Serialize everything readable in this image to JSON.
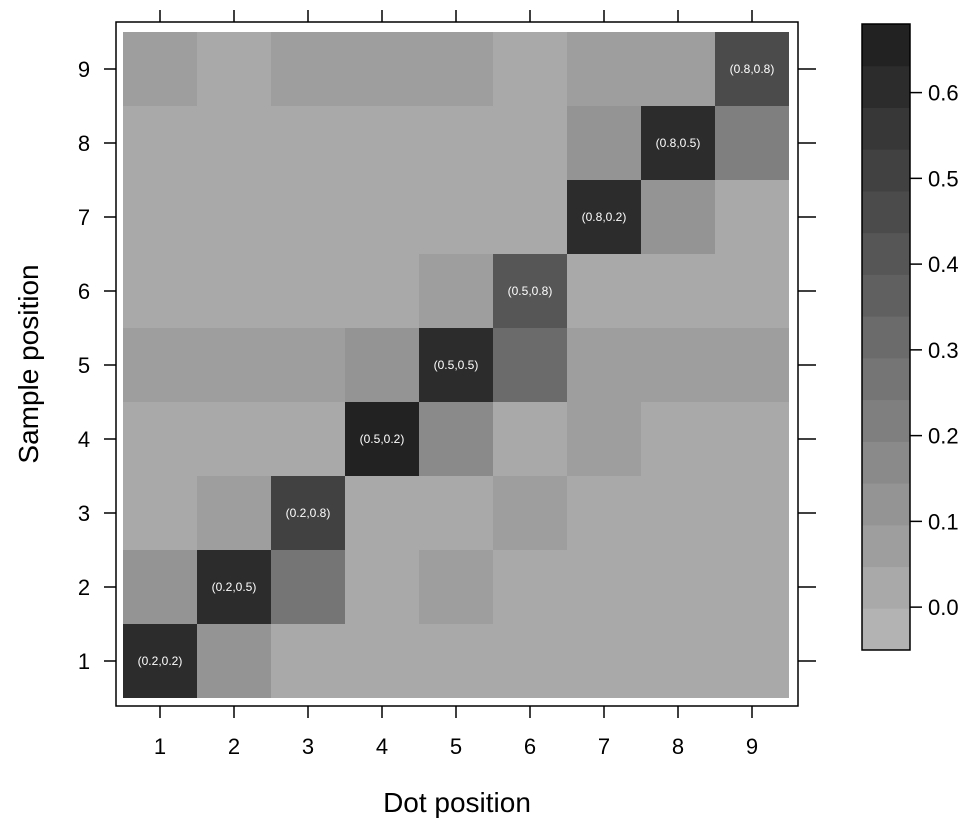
{
  "chart_data": {
    "type": "heatmap",
    "title": "",
    "xlabel": "Dot position",
    "ylabel": "Sample position",
    "x": [
      "1",
      "2",
      "3",
      "4",
      "5",
      "6",
      "7",
      "8",
      "9"
    ],
    "y": [
      "1",
      "2",
      "3",
      "4",
      "5",
      "6",
      "7",
      "8",
      "9"
    ],
    "z": [
      [
        0.62,
        0.11,
        0.03,
        0.03,
        0.03,
        0.03,
        0.03,
        0.03,
        0.03
      ],
      [
        0.11,
        0.62,
        0.28,
        0.03,
        0.06,
        0.03,
        0.03,
        0.03,
        0.03
      ],
      [
        0.03,
        0.07,
        0.5,
        0.03,
        0.03,
        0.07,
        0.03,
        0.03,
        0.03
      ],
      [
        0.03,
        0.03,
        0.03,
        0.68,
        0.17,
        0.03,
        0.05,
        0.03,
        0.03
      ],
      [
        0.06,
        0.06,
        0.06,
        0.13,
        0.62,
        0.3,
        0.06,
        0.06,
        0.06
      ],
      [
        0.03,
        0.03,
        0.03,
        0.03,
        0.06,
        0.42,
        0.03,
        0.03,
        0.03
      ],
      [
        0.03,
        0.03,
        0.03,
        0.03,
        0.03,
        0.03,
        0.6,
        0.11,
        0.03
      ],
      [
        0.03,
        0.03,
        0.03,
        0.03,
        0.03,
        0.03,
        0.11,
        0.62,
        0.2
      ],
      [
        0.05,
        0.01,
        0.05,
        0.05,
        0.05,
        0.01,
        0.05,
        0.08,
        0.45
      ]
    ],
    "annotations": [
      {
        "x": "1",
        "y": "1",
        "text": "(0.2,0.2)"
      },
      {
        "x": "2",
        "y": "2",
        "text": "(0.2,0.5)"
      },
      {
        "x": "3",
        "y": "3",
        "text": "(0.2,0.8)"
      },
      {
        "x": "4",
        "y": "4",
        "text": "(0.5,0.2)"
      },
      {
        "x": "5",
        "y": "5",
        "text": "(0.5,0.5)"
      },
      {
        "x": "6",
        "y": "6",
        "text": "(0.5,0.8)"
      },
      {
        "x": "7",
        "y": "7",
        "text": "(0.8,0.2)"
      },
      {
        "x": "8",
        "y": "8",
        "text": "(0.8,0.5)"
      },
      {
        "x": "9",
        "y": "9",
        "text": "(0.8,0.8)"
      }
    ],
    "colorbar": {
      "range": [
        -0.05,
        0.68
      ],
      "ticks": [
        0.0,
        0.1,
        0.2,
        0.3,
        0.4,
        0.5,
        0.6
      ],
      "tick_labels": [
        "0.0",
        "0.1",
        "0.2",
        "0.3",
        "0.4",
        "0.5",
        "0.6"
      ],
      "levels": 15,
      "color_low": "#b3b3b3",
      "color_high": "#222222"
    },
    "grid": false,
    "legend": "right"
  }
}
